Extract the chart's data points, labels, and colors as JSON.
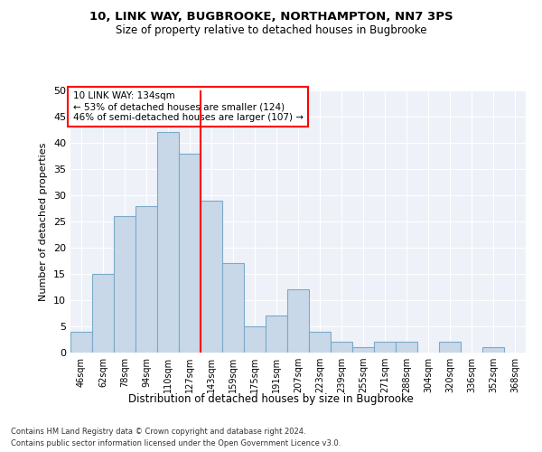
{
  "title1": "10, LINK WAY, BUGBROOKE, NORTHAMPTON, NN7 3PS",
  "title2": "Size of property relative to detached houses in Bugbrooke",
  "xlabel": "Distribution of detached houses by size in Bugbrooke",
  "ylabel": "Number of detached properties",
  "categories": [
    "46sqm",
    "62sqm",
    "78sqm",
    "94sqm",
    "110sqm",
    "127sqm",
    "143sqm",
    "159sqm",
    "175sqm",
    "191sqm",
    "207sqm",
    "223sqm",
    "239sqm",
    "255sqm",
    "271sqm",
    "288sqm",
    "304sqm",
    "320sqm",
    "336sqm",
    "352sqm",
    "368sqm"
  ],
  "values": [
    4,
    15,
    26,
    28,
    42,
    38,
    29,
    17,
    5,
    7,
    12,
    4,
    2,
    1,
    2,
    2,
    0,
    2,
    0,
    1,
    0
  ],
  "bar_color": "#c8d8e8",
  "bar_edge_color": "#7aaac8",
  "vline_x": 5.5,
  "vline_color": "red",
  "annotation_text": "10 LINK WAY: 134sqm\n← 53% of detached houses are smaller (124)\n46% of semi-detached houses are larger (107) →",
  "annotation_box_color": "white",
  "annotation_box_edge": "red",
  "ylim": [
    0,
    50
  ],
  "yticks": [
    0,
    5,
    10,
    15,
    20,
    25,
    30,
    35,
    40,
    45,
    50
  ],
  "background_color": "#eef2f8",
  "grid_color": "white",
  "footer1": "Contains HM Land Registry data © Crown copyright and database right 2024.",
  "footer2": "Contains public sector information licensed under the Open Government Licence v3.0."
}
